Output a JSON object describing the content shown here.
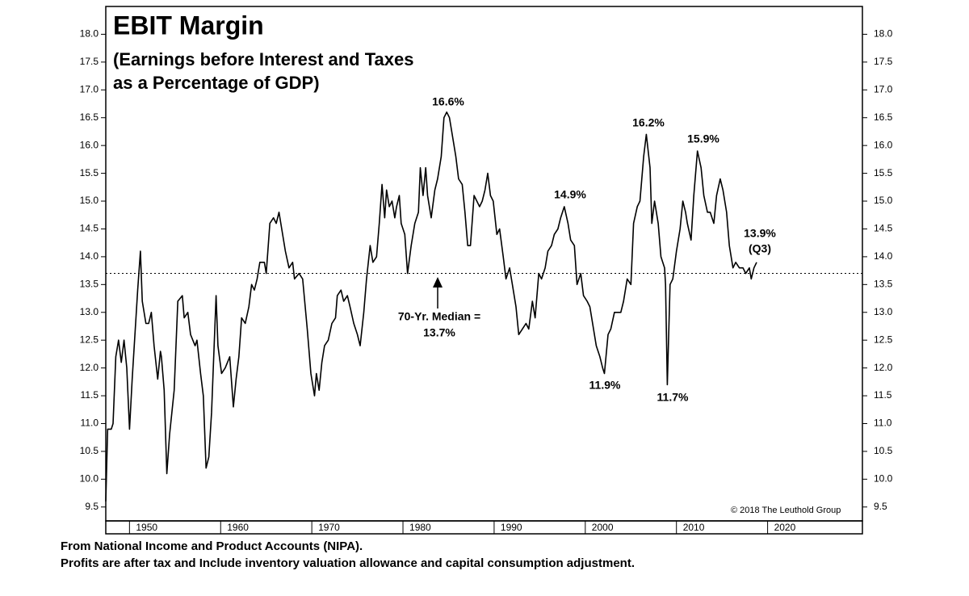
{
  "chart_data": {
    "type": "line",
    "title": "EBIT Margin",
    "subtitle": [
      "(Earnings before Interest and Taxes",
      "as a Percentage of GDP)"
    ],
    "color": "#000000",
    "median": 13.7,
    "annotations": [
      "16.6%",
      "16.2%",
      "15.9%",
      "14.9%",
      "13.9%",
      "(Q3)",
      "70-Yr. Median =",
      "13.7%",
      "11.9%",
      "11.7%"
    ],
    "credit": "© 2018 The Leuthold Group",
    "footnotes": [
      "From National Income and Product Accounts (NIPA).",
      "Profits are after tax and Include inventory valuation allowance and capital consumption adjustment."
    ],
    "xlim": [
      1947.4,
      2030.4
    ],
    "xticks": [
      1950,
      1960,
      1970,
      1980,
      1990,
      2000,
      2010,
      2020
    ],
    "ylim": [
      9.25,
      18.5
    ],
    "yticks": [
      9.5,
      {
        "value": 10,
        "label": "10.0"
      },
      10.5,
      {
        "value": 11,
        "label": "11.0"
      },
      11.5,
      {
        "value": 12,
        "label": "12.0"
      },
      12.5,
      {
        "value": 13,
        "label": "13.0"
      },
      13.5,
      {
        "value": 14,
        "label": "14.0"
      },
      14.5,
      {
        "value": 15,
        "label": "15.0"
      },
      15.5,
      {
        "value": 16,
        "label": "16.0"
      },
      16.5,
      {
        "value": 17,
        "label": "17.0"
      },
      17.5,
      {
        "value": 18,
        "label": "18.0"
      }
    ],
    "x": [
      1947.4,
      1947.6,
      1948.0,
      1948.2,
      1948.5,
      1948.8,
      1949.1,
      1949.4,
      1949.7,
      1950.0,
      1950.3,
      1950.9,
      1951.2,
      1951.4,
      1951.8,
      1952.1,
      1952.4,
      1952.7,
      1953.1,
      1953.4,
      1953.5,
      1953.8,
      1954.1,
      1954.4,
      1954.9,
      1955.3,
      1955.8,
      1956.0,
      1956.4,
      1956.7,
      1957.2,
      1957.4,
      1957.8,
      1958.1,
      1958.4,
      1958.7,
      1959.0,
      1959.5,
      1959.7,
      1960.1,
      1960.5,
      1961.0,
      1961.4,
      1961.7,
      1962.0,
      1962.3,
      1962.7,
      1963.1,
      1963.4,
      1963.7,
      1964.0,
      1964.3,
      1964.8,
      1965.0,
      1965.4,
      1965.8,
      1966.1,
      1966.4,
      1966.7,
      1967.1,
      1967.5,
      1967.9,
      1968.1,
      1968.6,
      1969.0,
      1969.5,
      1969.9,
      1970.3,
      1970.5,
      1970.8,
      1971.1,
      1971.4,
      1971.8,
      1972.2,
      1972.6,
      1972.8,
      1973.2,
      1973.5,
      1973.9,
      1974.2,
      1974.6,
      1975.0,
      1975.3,
      1975.7,
      1976.0,
      1976.4,
      1976.7,
      1977.1,
      1977.4,
      1977.7,
      1978.0,
      1978.2,
      1978.5,
      1978.8,
      1979.1,
      1979.3,
      1979.6,
      1979.8,
      1980.2,
      1980.5,
      1980.9,
      1981.3,
      1981.7,
      1981.9,
      1982.2,
      1982.5,
      1982.7,
      1983.1,
      1983.5,
      1983.8,
      1984.2,
      1984.5,
      1984.8,
      1985.1,
      1985.4,
      1985.8,
      1986.1,
      1986.5,
      1986.8,
      1987.1,
      1987.4,
      1987.8,
      1988.1,
      1988.4,
      1988.7,
      1989.0,
      1989.3,
      1989.6,
      1989.9,
      1990.3,
      1990.6,
      1991.0,
      1991.3,
      1991.7,
      1992.0,
      1992.4,
      1992.7,
      1993.1,
      1993.5,
      1993.8,
      1994.2,
      1994.5,
      1994.9,
      1995.2,
      1995.6,
      1995.9,
      1996.3,
      1996.6,
      1997.0,
      1997.3,
      1997.7,
      1998.1,
      1998.4,
      1998.8,
      1999.1,
      1999.5,
      1999.8,
      2000.2,
      2000.5,
      2000.9,
      2001.2,
      2001.6,
      2001.9,
      2002.1,
      2002.5,
      2002.8,
      2003.2,
      2003.5,
      2003.9,
      2004.2,
      2004.6,
      2005.0,
      2005.3,
      2005.7,
      2006.0,
      2006.4,
      2006.7,
      2007.1,
      2007.3,
      2007.6,
      2008.0,
      2008.3,
      2008.7,
      2008.8,
      2009.0,
      2009.3,
      2009.6,
      2010.0,
      2010.4,
      2010.7,
      2011.0,
      2011.2,
      2011.6,
      2011.9,
      2012.3,
      2012.7,
      2013.0,
      2013.4,
      2013.7,
      2014.1,
      2014.4,
      2014.8,
      2015.1,
      2015.5,
      2015.8,
      2016.2,
      2016.5,
      2016.9,
      2017.3,
      2017.6,
      2018.0,
      2018.2,
      2018.5,
      2018.8
    ],
    "values": [
      9.6,
      10.9,
      10.9,
      11.0,
      12.2,
      12.5,
      12.1,
      12.5,
      12.0,
      10.9,
      11.8,
      13.4,
      14.1,
      13.2,
      12.8,
      12.8,
      13.0,
      12.4,
      11.8,
      12.3,
      12.2,
      11.6,
      10.1,
      10.8,
      11.6,
      13.2,
      13.3,
      12.9,
      13.0,
      12.6,
      12.4,
      12.5,
      11.9,
      11.5,
      10.2,
      10.4,
      11.2,
      13.3,
      12.4,
      11.9,
      12.0,
      12.2,
      11.3,
      11.8,
      12.2,
      12.9,
      12.8,
      13.1,
      13.5,
      13.4,
      13.6,
      13.9,
      13.9,
      13.7,
      14.6,
      14.7,
      14.6,
      14.8,
      14.5,
      14.1,
      13.8,
      13.9,
      13.6,
      13.7,
      13.6,
      12.7,
      11.9,
      11.5,
      11.9,
      11.6,
      12.1,
      12.4,
      12.5,
      12.8,
      12.9,
      13.3,
      13.4,
      13.2,
      13.3,
      13.1,
      12.8,
      12.6,
      12.4,
      13.0,
      13.6,
      14.2,
      13.9,
      14.0,
      14.6,
      15.3,
      14.7,
      15.2,
      14.9,
      15.0,
      14.7,
      14.9,
      15.1,
      14.6,
      14.4,
      13.7,
      14.2,
      14.6,
      14.8,
      15.6,
      15.1,
      15.6,
      15.1,
      14.7,
      15.2,
      15.4,
      15.8,
      16.5,
      16.6,
      16.5,
      16.2,
      15.8,
      15.4,
      15.3,
      14.8,
      14.2,
      14.2,
      15.1,
      15.0,
      14.9,
      15.0,
      15.2,
      15.5,
      15.1,
      15.0,
      14.4,
      14.5,
      14.0,
      13.6,
      13.8,
      13.5,
      13.1,
      12.6,
      12.7,
      12.8,
      12.7,
      13.2,
      12.9,
      13.7,
      13.6,
      13.8,
      14.1,
      14.2,
      14.4,
      14.5,
      14.7,
      14.9,
      14.6,
      14.3,
      14.2,
      13.5,
      13.7,
      13.3,
      13.2,
      13.1,
      12.7,
      12.4,
      12.2,
      12.0,
      11.9,
      12.6,
      12.7,
      13.0,
      13.0,
      13.0,
      13.2,
      13.6,
      13.5,
      14.6,
      14.9,
      15.0,
      15.8,
      16.2,
      15.6,
      14.6,
      15.0,
      14.6,
      14.0,
      13.8,
      13.5,
      11.7,
      13.5,
      13.6,
      14.1,
      14.5,
      15.0,
      14.8,
      14.6,
      14.3,
      15.1,
      15.9,
      15.6,
      15.1,
      14.8,
      14.8,
      14.6,
      15.1,
      15.4,
      15.2,
      14.8,
      14.2,
      13.8,
      13.9,
      13.8,
      13.8,
      13.7,
      13.8,
      13.6,
      13.8,
      13.9
    ]
  }
}
